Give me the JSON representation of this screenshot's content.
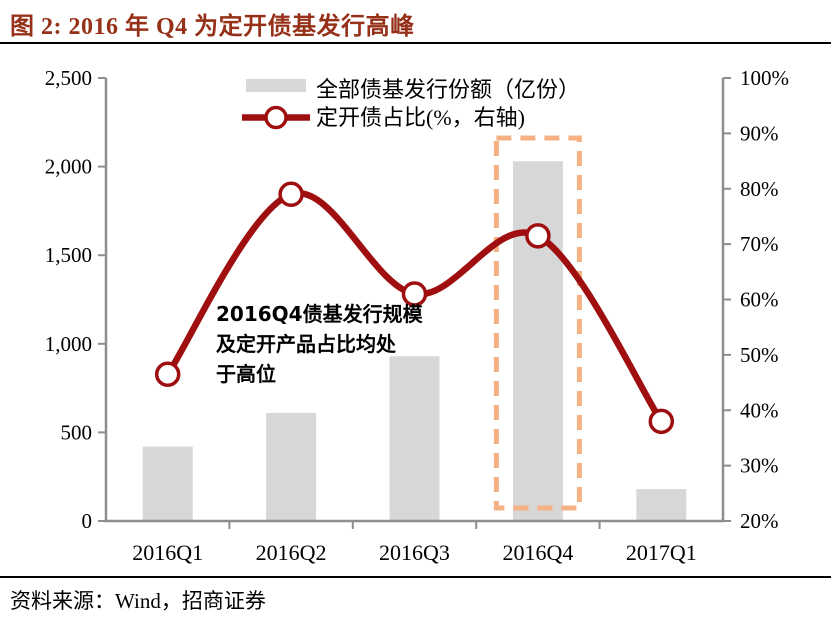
{
  "header": {
    "title": "图 2: 2016 年 Q4 为定开债基发行高峰"
  },
  "footer": {
    "source": "资料来源：Wind，招商证券"
  },
  "annotation": {
    "lines": [
      "2016Q4债基发行规模",
      "及定开产品占比均处",
      "于高位"
    ]
  },
  "colors": {
    "title": "#963018",
    "line": "#A00F0F",
    "bar": "#D7D7D7",
    "axis": "#8E8E8E",
    "highlight": "#F5B183",
    "text": "#000000"
  },
  "chart_data": {
    "type": "bar",
    "title": "图 2: 2016 年 Q4 为定开债基发行高峰",
    "categories": [
      "2016Q1",
      "2016Q2",
      "2016Q3",
      "2016Q4",
      "2017Q1"
    ],
    "series": [
      {
        "name": "全部债基发行份额（亿份）",
        "type": "bar",
        "axis": "left",
        "values": [
          420,
          610,
          930,
          2030,
          180
        ]
      },
      {
        "name": "定开债占比(%，右轴)",
        "type": "line",
        "axis": "right",
        "values": [
          46.5,
          79,
          61,
          71.5,
          38
        ]
      }
    ],
    "left_axis": {
      "label": "",
      "min": 0,
      "max": 2500,
      "tick_labels": [
        "0",
        "500",
        "1,000",
        "1,500",
        "2,000",
        "2,500"
      ]
    },
    "right_axis": {
      "label": "%",
      "min": 20,
      "max": 100,
      "tick_labels": [
        "20%",
        "30%",
        "40%",
        "50%",
        "60%",
        "70%",
        "80%",
        "90%",
        "100%"
      ]
    },
    "grid": false,
    "legend_position": "top-center",
    "line_smoothed": true,
    "highlight": {
      "category": "2016Q4",
      "style": "dashed-rectangle"
    }
  }
}
